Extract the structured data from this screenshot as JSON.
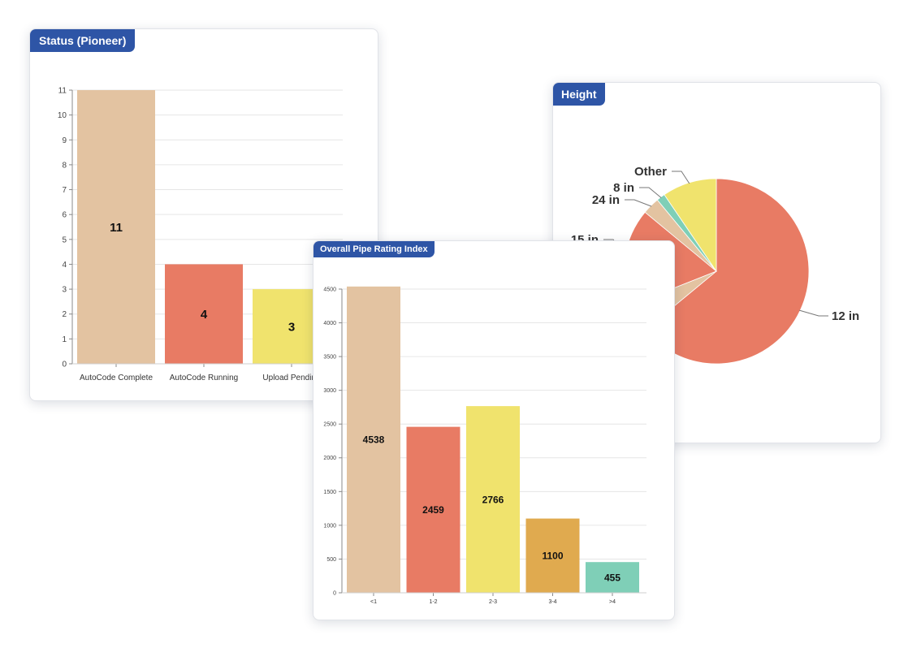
{
  "cards": {
    "status": {
      "title": "Status (Pioneer)"
    },
    "height": {
      "title": "Height"
    },
    "rating": {
      "title": "Overall Pipe Rating Index"
    }
  },
  "colors": {
    "tan": "#e3c3a1",
    "coral": "#e87b64",
    "yellow": "#f0e36d",
    "orange": "#e0aa4f",
    "teal": "#7fcfb7",
    "header": "#2e55a6"
  },
  "chart_data": [
    {
      "type": "bar",
      "title": "Status (Pioneer)",
      "categories": [
        "AutoCode Complete",
        "AutoCode Running",
        "Upload Pending"
      ],
      "values": [
        11,
        4,
        3
      ],
      "data_labels": [
        "11",
        "4",
        "3"
      ],
      "colors": [
        "#e3c3a1",
        "#e87b64",
        "#f0e36d"
      ],
      "ylim": [
        0,
        11
      ],
      "yticks": [
        0,
        1,
        2,
        3,
        4,
        5,
        6,
        7,
        8,
        9,
        10,
        11
      ],
      "grid": true
    },
    {
      "type": "pie",
      "title": "Height",
      "slices": [
        {
          "label": "12 in",
          "value": 64,
          "color": "#e87b64"
        },
        {
          "label": "",
          "value": 5,
          "color": "#e3c3a1"
        },
        {
          "label": "15 in",
          "value": 17,
          "color": "#e87b64"
        },
        {
          "label": "24 in",
          "value": 3,
          "color": "#e3c3a1"
        },
        {
          "label": "8 in",
          "value": 1.5,
          "color": "#7fcfb7"
        },
        {
          "label": "Other",
          "value": 9.5,
          "color": "#f0e36d"
        }
      ]
    },
    {
      "type": "bar",
      "title": "Overall Pipe Rating Index",
      "categories": [
        "<1",
        "1-2",
        "2-3",
        "3-4",
        ">4"
      ],
      "values": [
        4538,
        2459,
        2766,
        1100,
        455
      ],
      "data_labels": [
        "4538",
        "2459",
        "2766",
        "1100",
        "455"
      ],
      "colors": [
        "#e3c3a1",
        "#e87b64",
        "#f0e36d",
        "#e0aa4f",
        "#7fcfb7"
      ],
      "ylim": [
        0,
        4500
      ],
      "yticks": [
        0,
        500,
        1000,
        1500,
        2000,
        2500,
        3000,
        3500,
        4000,
        4500
      ],
      "grid": true
    }
  ]
}
